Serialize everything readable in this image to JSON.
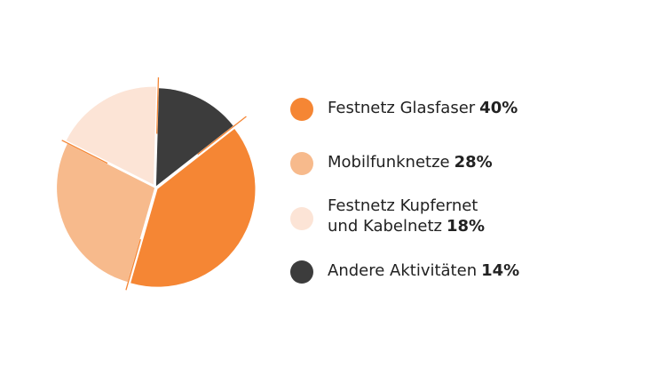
{
  "chart_data": {
    "type": "pie",
    "slices": [
      {
        "label": "Festnetz Glasfaser",
        "value": 40,
        "value_label": "40%",
        "color": "#F58634"
      },
      {
        "label": "Mobilfunknetze",
        "value": 28,
        "value_label": "28%",
        "color": "#F7BA8C"
      },
      {
        "label": "Festnetz Kupfernet und Kabelnetz",
        "label_lines": [
          "Festnetz Kupfernet",
          "und Kabelnetz"
        ],
        "value": 18,
        "value_label": "18%",
        "color": "#FCE4D6"
      },
      {
        "label": "Andere Aktivitäten",
        "value": 14,
        "value_label": "14%",
        "color": "#3C3C3C"
      }
    ],
    "legend_position": "right",
    "separator_color": "#F58634"
  }
}
